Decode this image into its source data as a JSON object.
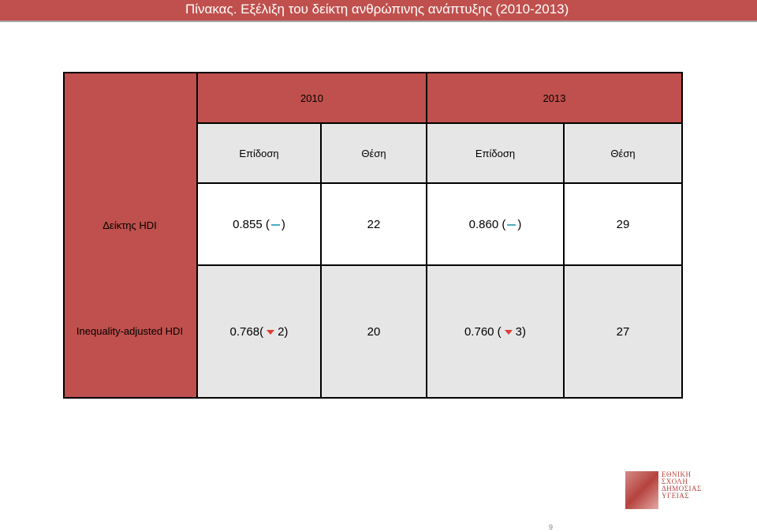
{
  "header": {
    "title": "Πίνακας. Εξέλιξη του δείκτη ανθρώπινης ανάπτυξης (2010-2013)"
  },
  "table": {
    "years": [
      "2010",
      "2013"
    ],
    "subheaders": [
      "Επίδοση",
      "Θέση",
      "Επίδοση",
      "Θέση"
    ],
    "rows": [
      {
        "label": "Δείκτης HDI",
        "perf2010_value": "0.855 (",
        "perf2010_change": "",
        "perf2010_trend": "dash-icon",
        "rank2010": "22",
        "perf2013_value": "0.860 (",
        "perf2013_change": "",
        "perf2013_trend": "dash-icon",
        "rank2013": "29"
      },
      {
        "label": "Inequality-adjusted HDI",
        "perf2010_value": "0.768(",
        "perf2010_change": "2)",
        "perf2010_trend": "down-triangle-icon",
        "rank2010": "20",
        "perf2013_value": "0.760 (",
        "perf2013_change": "3)",
        "perf2013_trend": "down-triangle-icon",
        "rank2013": "27"
      }
    ],
    "close_paren": ")"
  },
  "logo": {
    "lines": [
      "ΕΘΝΙΚΗ",
      "ΣΧΟΛΗ",
      "ΔΗΜΟΣΙΑΣ",
      "ΥΓΕΙΑΣ"
    ],
    "note": "Logo lettering reproduced as picture"
  },
  "footer": {
    "page_number": "9"
  },
  "colors": {
    "accent_red": "#c0504d",
    "gray_fill": "#e6e6e6",
    "dash_blue": "#4bacc6",
    "trend_down": "#e03c31"
  }
}
